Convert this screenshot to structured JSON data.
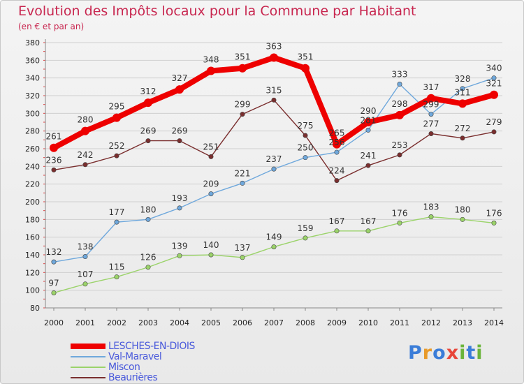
{
  "title": "Evolution des Impôts locaux pour la Commune par Habitant",
  "subtitle": "(en € et par an)",
  "logo": {
    "text": "Proxiti",
    "letters": [
      {
        "ch": "P",
        "color": "#3b7dd8"
      },
      {
        "ch": "r",
        "color": "#e89a2a"
      },
      {
        "ch": "o",
        "color": "#3b7dd8"
      },
      {
        "ch": "x",
        "color": "#e8463a"
      },
      {
        "ch": "i",
        "color": "#6ab43a"
      },
      {
        "ch": "t",
        "color": "#3b7dd8"
      },
      {
        "ch": "i",
        "color": "#6ab43a"
      }
    ]
  },
  "chart_data": {
    "type": "line",
    "title": "Evolution des Impôts locaux pour la Commune par Habitant",
    "subtitle": "(en € et par an)",
    "x": [
      "2000",
      "2001",
      "2002",
      "2003",
      "2004",
      "2005",
      "2006",
      "2007",
      "2008",
      "2009",
      "2010",
      "2011",
      "2012",
      "2013",
      "2014"
    ],
    "ylim": [
      80,
      380
    ],
    "yticks": [
      80,
      100,
      120,
      140,
      160,
      180,
      200,
      220,
      240,
      260,
      280,
      300,
      320,
      340,
      360,
      380
    ],
    "grid": "horizontal",
    "legend_position": "bottom-left",
    "series": [
      {
        "name": "LESCHES-EN-DIOIS",
        "color": "#ee0000",
        "values": [
          261,
          280,
          295,
          312,
          327,
          348,
          351,
          363,
          351,
          265,
          290,
          298,
          317,
          311,
          321
        ]
      },
      {
        "name": "Val-Maravel",
        "color": "#6fa8dc",
        "values": [
          132,
          138,
          177,
          180,
          193,
          209,
          221,
          237,
          250,
          256,
          281,
          333,
          299,
          328,
          340
        ]
      },
      {
        "name": "Miscon",
        "color": "#9bd36a",
        "values": [
          97,
          107,
          115,
          126,
          139,
          140,
          137,
          149,
          159,
          167,
          167,
          176,
          183,
          180,
          176
        ]
      },
      {
        "name": "Beaurières",
        "color": "#7a2e2e",
        "values": [
          236,
          242,
          252,
          269,
          269,
          251,
          299,
          315,
          275,
          224,
          241,
          253,
          277,
          272,
          279
        ]
      }
    ]
  }
}
